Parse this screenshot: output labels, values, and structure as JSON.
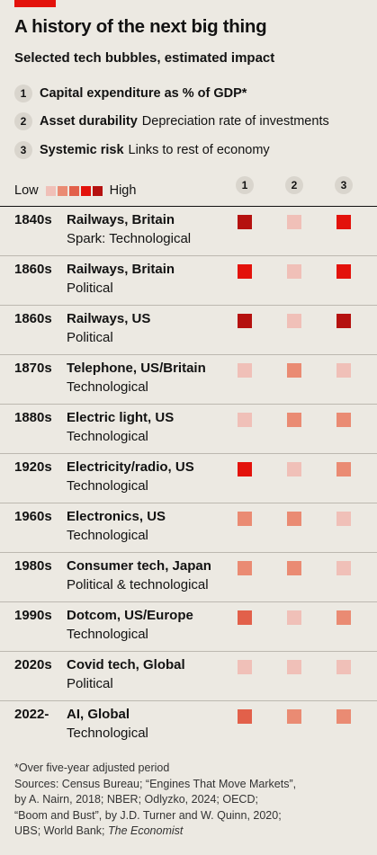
{
  "header": {
    "title": "A history of the next big thing",
    "subtitle": "Selected tech bubbles, estimated impact"
  },
  "key": [
    {
      "num": "1",
      "label": "Capital expenditure as % of GDP*",
      "desc": ""
    },
    {
      "num": "2",
      "label": "Asset durability",
      "desc": "Depreciation rate of investments"
    },
    {
      "num": "3",
      "label": "Systemic risk",
      "desc": "Links to rest of economy"
    }
  ],
  "legend": {
    "low": "Low",
    "high": "High"
  },
  "scale_colors": [
    "#f0c0b8",
    "#ea8b73",
    "#e2604a",
    "#e3120b",
    "#b5110f"
  ],
  "chart_data": {
    "type": "table",
    "title": "A history of the next big thing",
    "subtitle": "Selected tech bubbles, estimated impact",
    "columns": [
      "1",
      "2",
      "3"
    ],
    "scale": "1 = Low … 5 = High",
    "rows": [
      {
        "year": "1840s",
        "name": "Railways, Britain",
        "spark": "Spark: Technological",
        "values": [
          5,
          1,
          4
        ]
      },
      {
        "year": "1860s",
        "name": "Railways, Britain",
        "spark": "Political",
        "values": [
          4,
          1,
          4
        ]
      },
      {
        "year": "1860s",
        "name": "Railways, US",
        "spark": "Political",
        "values": [
          5,
          1,
          5
        ]
      },
      {
        "year": "1870s",
        "name": "Telephone, US/Britain",
        "spark": "Technological",
        "values": [
          1,
          2,
          1
        ]
      },
      {
        "year": "1880s",
        "name": "Electric light, US",
        "spark": "Technological",
        "values": [
          1,
          2,
          2
        ]
      },
      {
        "year": "1920s",
        "name": "Electricity/radio, US",
        "spark": "Technological",
        "values": [
          4,
          1,
          2
        ]
      },
      {
        "year": "1960s",
        "name": "Electronics, US",
        "spark": "Technological",
        "values": [
          2,
          2,
          1
        ]
      },
      {
        "year": "1980s",
        "name": "Consumer tech, Japan",
        "spark": "Political & technological",
        "values": [
          2,
          2,
          1
        ]
      },
      {
        "year": "1990s",
        "name": "Dotcom, US/Europe",
        "spark": "Technological",
        "values": [
          3,
          1,
          2
        ]
      },
      {
        "year": "2020s",
        "name": "Covid tech, Global",
        "spark": "Political",
        "values": [
          1,
          1,
          1
        ]
      },
      {
        "year": "2022-",
        "name": "AI, Global",
        "spark": "Technological",
        "values": [
          3,
          2,
          2
        ]
      }
    ]
  },
  "footer": {
    "note": "*Over five-year adjusted period",
    "sources_1": "Sources: Census Bureau; “Engines That Move Markets”,",
    "sources_2": "by A. Nairn, 2018; NBER; Odlyzko, 2024; OECD;",
    "sources_3": "“Boom and Bust”, by J.D. Turner and W. Quinn, 2020;",
    "sources_4": "UBS; World Bank;",
    "publisher": "The Economist"
  }
}
